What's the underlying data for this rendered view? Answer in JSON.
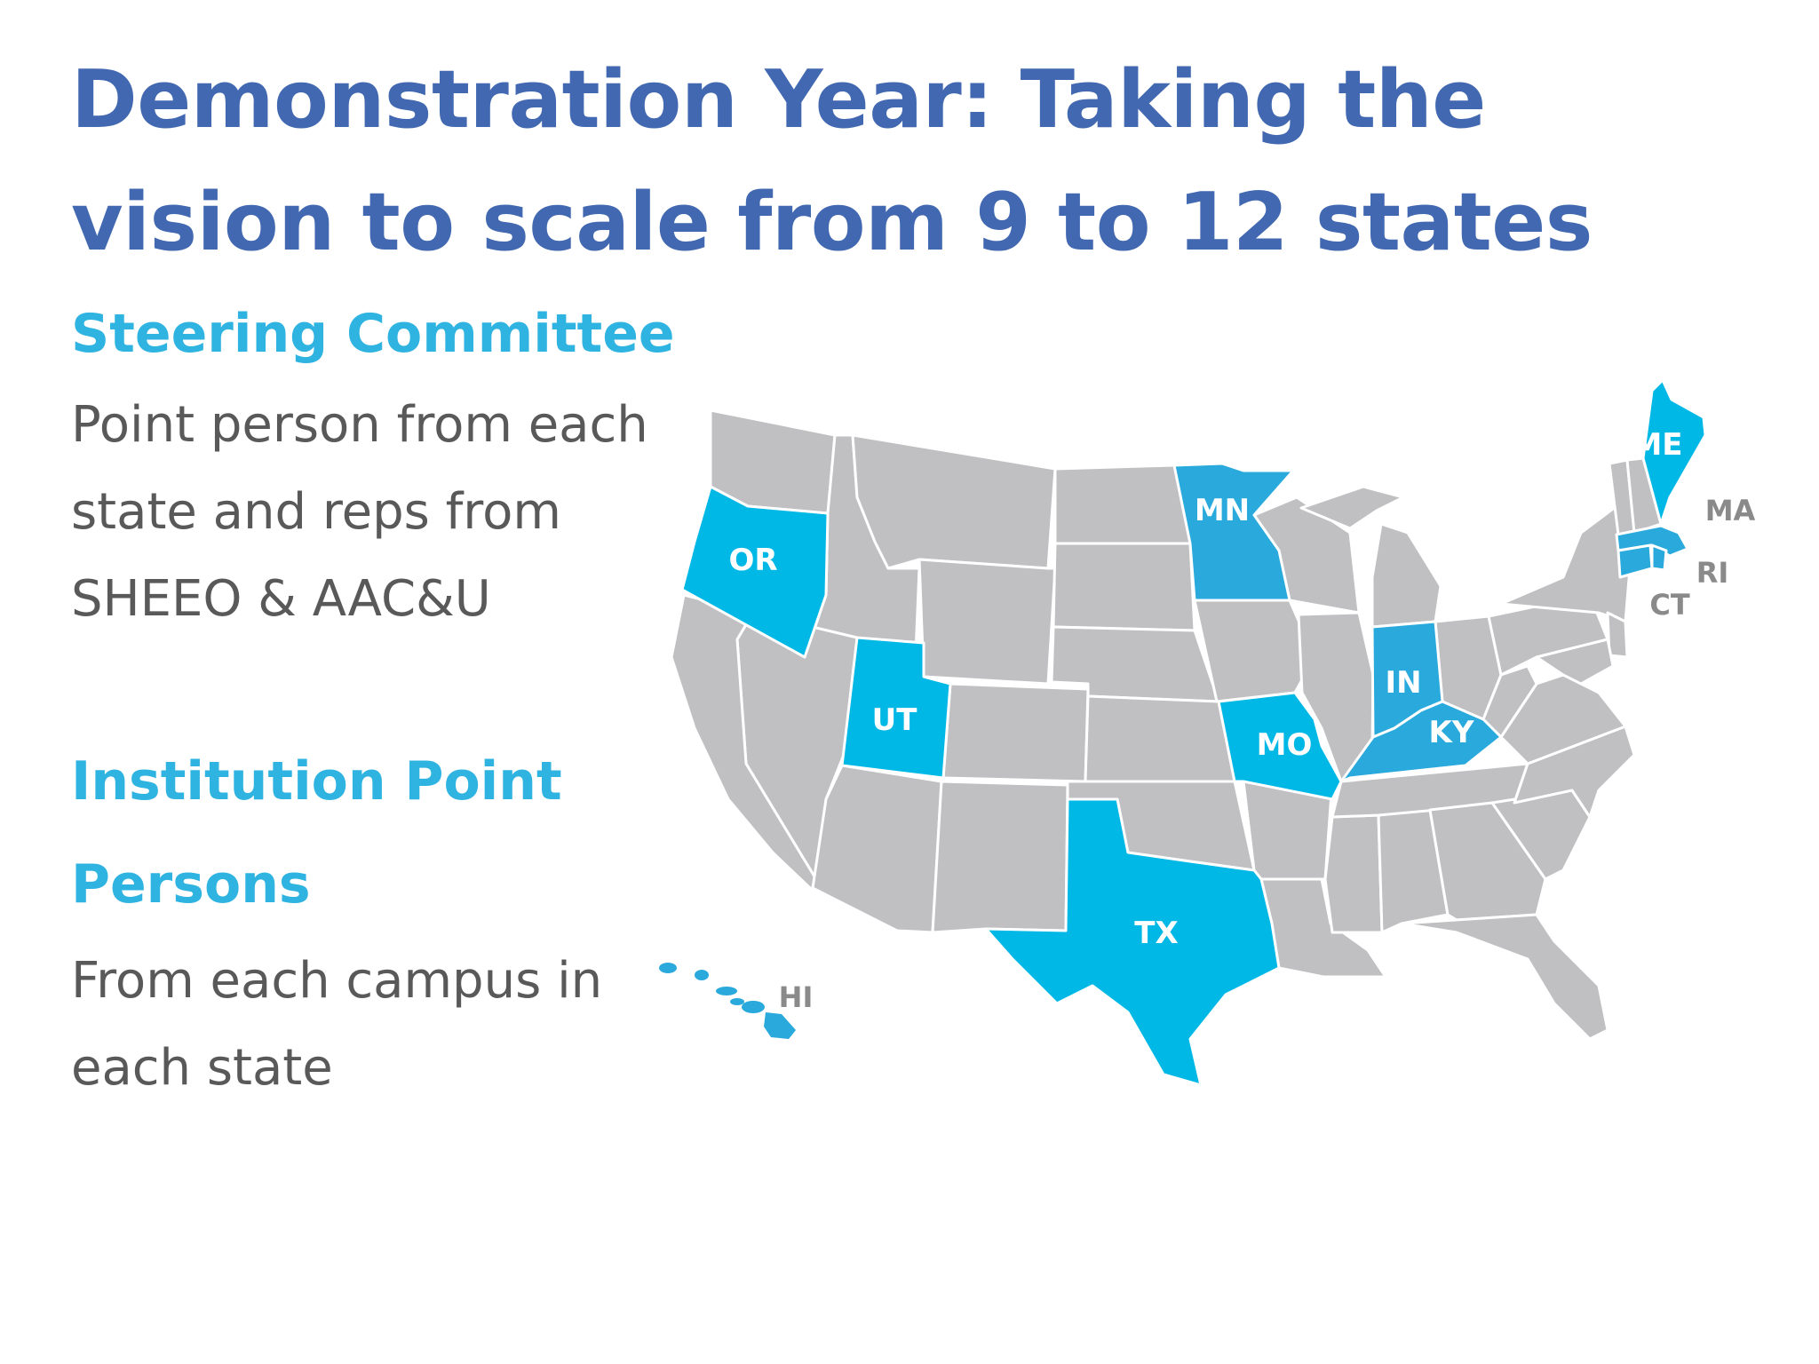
{
  "slide": {
    "title": "Demonstration Year: Taking the vision to scale from 9 to 12 states",
    "sections": [
      {
        "heading": "Steering Committee",
        "body": "Point person from each state and reps from SHEEO & AAC&U"
      },
      {
        "heading": "Institution Point Persons",
        "body": "From each campus in each state"
      }
    ]
  },
  "map": {
    "highlight_color": "#00b8e6",
    "highlight_color_alt": "#29a9dc",
    "base_color": "#c0bfc2",
    "highlighted_states": [
      "OR",
      "UT",
      "MN",
      "MO",
      "TX",
      "IN",
      "KY",
      "ME",
      "MA",
      "RI",
      "CT",
      "HI"
    ],
    "labels": {
      "OR": "OR",
      "UT": "UT",
      "MN": "MN",
      "MO": "MO",
      "TX": "TX",
      "IN": "IN",
      "KY": "KY",
      "ME": "ME",
      "MA": "MA",
      "RI": "RI",
      "CT": "CT",
      "HI": "HI"
    }
  }
}
